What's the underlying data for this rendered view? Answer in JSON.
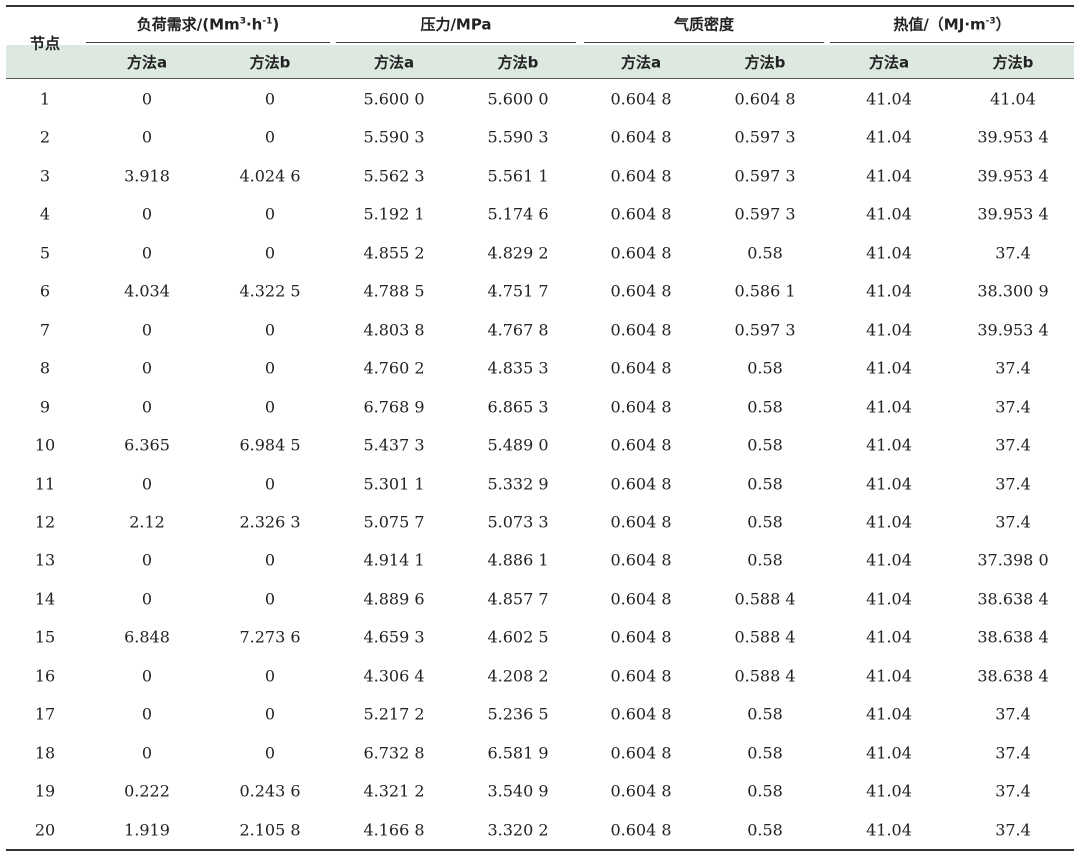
{
  "table": {
    "node_header": "节点",
    "groups": [
      {
        "label": "负荷需求/(Mm",
        "sup1": "3",
        "mid": "·h",
        "sup2": "-1",
        "tail": ")"
      },
      {
        "label": "压力/MPa"
      },
      {
        "label": "气质密度"
      },
      {
        "label": "热值/（MJ·m",
        "sup1": "-3",
        "tail": "）"
      }
    ],
    "sub_headers": [
      "方法a",
      "方法b",
      "方法a",
      "方法b",
      "方法a",
      "方法b",
      "方法a",
      "方法b"
    ],
    "rows": [
      [
        "1",
        "0",
        "0",
        "5.600 0",
        "5.600 0",
        "0.604 8",
        "0.604 8",
        "41.04",
        "41.04"
      ],
      [
        "2",
        "0",
        "0",
        "5.590 3",
        "5.590 3",
        "0.604 8",
        "0.597 3",
        "41.04",
        "39.953 4"
      ],
      [
        "3",
        "3.918",
        "4.024 6",
        "5.562 3",
        "5.561 1",
        "0.604 8",
        "0.597 3",
        "41.04",
        "39.953 4"
      ],
      [
        "4",
        "0",
        "0",
        "5.192 1",
        "5.174 6",
        "0.604 8",
        "0.597 3",
        "41.04",
        "39.953 4"
      ],
      [
        "5",
        "0",
        "0",
        "4.855 2",
        "4.829 2",
        "0.604 8",
        "0.58",
        "41.04",
        "37.4"
      ],
      [
        "6",
        "4.034",
        "4.322 5",
        "4.788 5",
        "4.751 7",
        "0.604 8",
        "0.586 1",
        "41.04",
        "38.300 9"
      ],
      [
        "7",
        "0",
        "0",
        "4.803 8",
        "4.767 8",
        "0.604 8",
        "0.597 3",
        "41.04",
        "39.953 4"
      ],
      [
        "8",
        "0",
        "0",
        "4.760 2",
        "4.835 3",
        "0.604 8",
        "0.58",
        "41.04",
        "37.4"
      ],
      [
        "9",
        "0",
        "0",
        "6.768 9",
        "6.865 3",
        "0.604 8",
        "0.58",
        "41.04",
        "37.4"
      ],
      [
        "10",
        "6.365",
        "6.984 5",
        "5.437 3",
        "5.489 0",
        "0.604 8",
        "0.58",
        "41.04",
        "37.4"
      ],
      [
        "11",
        "0",
        "0",
        "5.301 1",
        "5.332 9",
        "0.604 8",
        "0.58",
        "41.04",
        "37.4"
      ],
      [
        "12",
        "2.12",
        "2.326 3",
        "5.075 7",
        "5.073 3",
        "0.604 8",
        "0.58",
        "41.04",
        "37.4"
      ],
      [
        "13",
        "0",
        "0",
        "4.914 1",
        "4.886 1",
        "0.604 8",
        "0.58",
        "41.04",
        "37.398 0"
      ],
      [
        "14",
        "0",
        "0",
        "4.889 6",
        "4.857 7",
        "0.604 8",
        "0.588 4",
        "41.04",
        "38.638 4"
      ],
      [
        "15",
        "6.848",
        "7.273 6",
        "4.659 3",
        "4.602 5",
        "0.604 8",
        "0.588 4",
        "41.04",
        "38.638 4"
      ],
      [
        "16",
        "0",
        "0",
        "4.306 4",
        "4.208 2",
        "0.604 8",
        "0.588 4",
        "41.04",
        "38.638 4"
      ],
      [
        "17",
        "0",
        "0",
        "5.217 2",
        "5.236 5",
        "0.604 8",
        "0.58",
        "41.04",
        "37.4"
      ],
      [
        "18",
        "0",
        "0",
        "6.732 8",
        "6.581 9",
        "0.604 8",
        "0.58",
        "41.04",
        "37.4"
      ],
      [
        "19",
        "0.222",
        "0.243 6",
        "4.321 2",
        "3.540 9",
        "0.604 8",
        "0.58",
        "41.04",
        "37.4"
      ],
      [
        "20",
        "1.919",
        "2.105 8",
        "4.166 8",
        "3.320 2",
        "0.604 8",
        "0.58",
        "41.04",
        "37.4"
      ]
    ]
  }
}
